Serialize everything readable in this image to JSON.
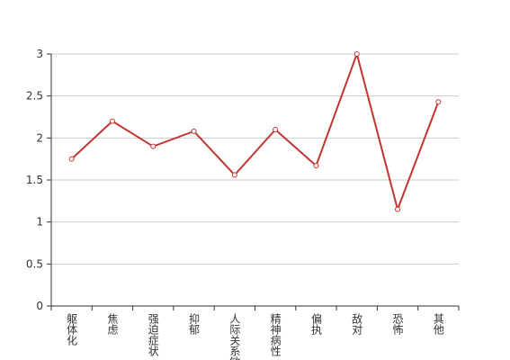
{
  "chart_data": {
    "type": "line",
    "categories": [
      "躯体化",
      "焦虑",
      "强迫症状",
      "抑郁",
      "人际关系敏感",
      "精神病性",
      "偏执",
      "敌对",
      "恐怖",
      "其他"
    ],
    "values": [
      1.75,
      2.2,
      1.9,
      2.08,
      1.56,
      2.1,
      1.67,
      3.0,
      1.15,
      2.43
    ],
    "color": "#c23531",
    "ylim": [
      0,
      3
    ],
    "yticks": [
      0,
      0.5,
      1,
      1.5,
      2,
      2.5,
      3
    ],
    "grid": true
  }
}
